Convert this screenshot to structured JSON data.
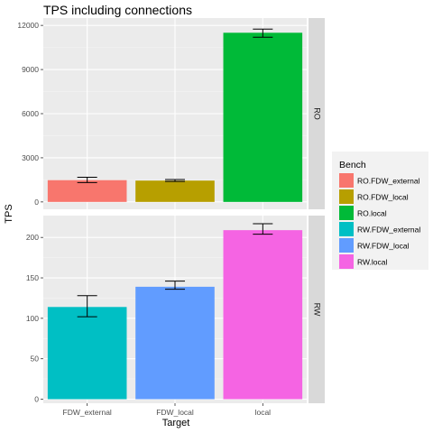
{
  "chart_data": {
    "type": "bar",
    "title": "TPS including connections",
    "xlabel": "Target",
    "ylabel": "TPS",
    "categories": [
      "FDW_external",
      "FDW_local",
      "local"
    ],
    "legend": {
      "title": "Bench",
      "placement": "right"
    },
    "grid": true,
    "facets": [
      {
        "strip_label": "RO",
        "ylim": [
          -500,
          12500
        ],
        "yticks": [
          0,
          3000,
          6000,
          9000,
          12000
        ],
        "series": [
          {
            "name": "RO.FDW_external",
            "color": "#F8766D",
            "category": "FDW_external",
            "value": 1480,
            "error": [
              1320,
              1680
            ]
          },
          {
            "name": "RO.FDW_local",
            "color": "#B79F00",
            "category": "FDW_local",
            "value": 1450,
            "error": [
              1390,
              1520
            ]
          },
          {
            "name": "RO.local",
            "color": "#00BA38",
            "category": "local",
            "value": 11500,
            "error": [
              11200,
              11750
            ]
          }
        ]
      },
      {
        "strip_label": "RW",
        "ylim": [
          -5,
          227
        ],
        "yticks": [
          0,
          50,
          100,
          150,
          200
        ],
        "series": [
          {
            "name": "RW.FDW_external",
            "color": "#00BFC4",
            "category": "FDW_external",
            "value": 114,
            "error": [
              102,
              128
            ]
          },
          {
            "name": "RW.FDW_local",
            "color": "#619CFF",
            "category": "FDW_local",
            "value": 139,
            "error": [
              136,
              146
            ]
          },
          {
            "name": "RW.local",
            "color": "#F564E3",
            "category": "local",
            "value": 209,
            "error": [
              204,
              217
            ]
          }
        ]
      }
    ]
  }
}
